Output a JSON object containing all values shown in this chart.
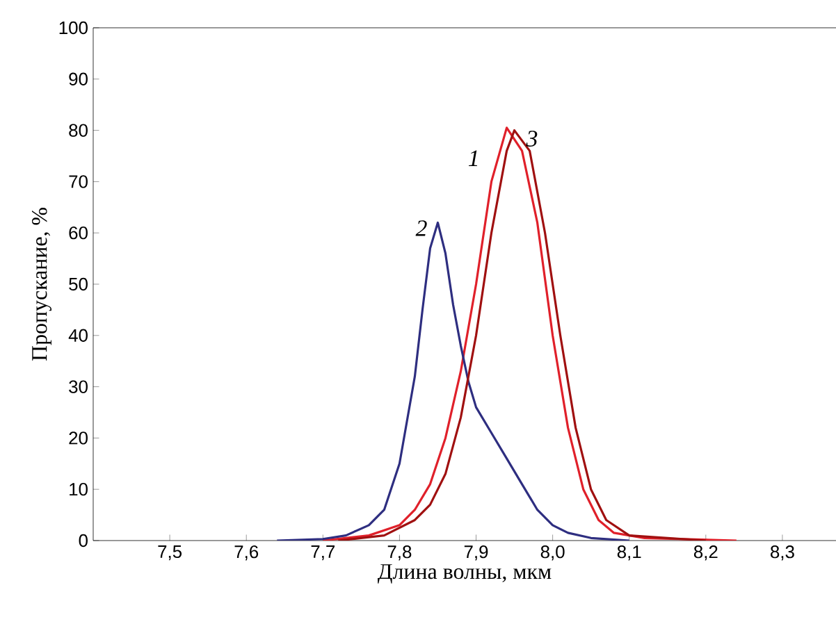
{
  "chart_data": {
    "type": "line",
    "xlabel": "Длина волны, мкм",
    "ylabel": "Пропускание, %",
    "xlim": [
      7.4,
      8.37
    ],
    "ylim": [
      0,
      100
    ],
    "xticks": [
      {
        "value": 7.5,
        "label": "7,5"
      },
      {
        "value": 7.6,
        "label": "7,6"
      },
      {
        "value": 7.7,
        "label": "7,7"
      },
      {
        "value": 7.8,
        "label": "7,8"
      },
      {
        "value": 7.9,
        "label": "7,9"
      },
      {
        "value": 8.0,
        "label": "8,0"
      },
      {
        "value": 8.1,
        "label": "8,1"
      },
      {
        "value": 8.2,
        "label": "8,2"
      },
      {
        "value": 8.3,
        "label": "8,3"
      }
    ],
    "yticks": [
      0,
      10,
      20,
      30,
      40,
      50,
      60,
      70,
      80,
      90,
      100
    ],
    "series": [
      {
        "name": "1",
        "color": "#e0202a",
        "x": [
          7.7,
          7.76,
          7.8,
          7.82,
          7.84,
          7.86,
          7.88,
          7.9,
          7.92,
          7.94,
          7.96,
          7.98,
          8.0,
          8.02,
          8.04,
          8.06,
          8.08,
          8.12,
          8.24
        ],
        "values": [
          0,
          1,
          3,
          6,
          11,
          20,
          33,
          50,
          70,
          80.5,
          76,
          62,
          40,
          22,
          10,
          4,
          1.5,
          0.5,
          0
        ]
      },
      {
        "name": "2",
        "color": "#2e2e80",
        "x": [
          7.64,
          7.7,
          7.73,
          7.76,
          7.78,
          7.8,
          7.82,
          7.83,
          7.84,
          7.85,
          7.86,
          7.87,
          7.88,
          7.89,
          7.9,
          7.92,
          7.94,
          7.96,
          7.98,
          8.0,
          8.02,
          8.05,
          8.1
        ],
        "values": [
          0,
          0.3,
          1,
          3,
          6,
          15,
          32,
          45,
          57,
          62,
          56,
          46,
          38,
          31,
          26,
          21,
          16,
          11,
          6,
          3,
          1.5,
          0.5,
          0
        ]
      },
      {
        "name": "3",
        "color": "#a01010",
        "x": [
          7.72,
          7.78,
          7.82,
          7.84,
          7.86,
          7.88,
          7.9,
          7.92,
          7.94,
          7.95,
          7.97,
          7.99,
          8.01,
          8.03,
          8.05,
          8.07,
          8.1,
          8.2
        ],
        "values": [
          0,
          1,
          4,
          7,
          13,
          24,
          40,
          60,
          76,
          80,
          76,
          60,
          40,
          22,
          10,
          4,
          1,
          0
        ]
      }
    ]
  }
}
